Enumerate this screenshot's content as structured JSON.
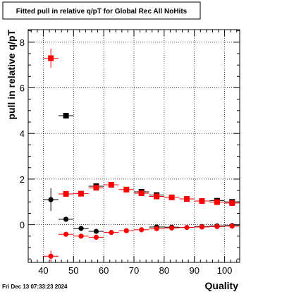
{
  "chart_data": {
    "type": "scatter",
    "title": "Fitted pull in relative q/pT for Global Rec All NoHits",
    "xlabel": "Quality",
    "ylabel": "pull in relative q/pT",
    "timestamp": "Fri Dec 13 07:33:23 2024",
    "xlim": [
      35,
      105
    ],
    "ylim": [
      -1.65,
      8.55
    ],
    "x_ticks": [
      40,
      50,
      60,
      70,
      80,
      90,
      100
    ],
    "y_ticks": [
      0,
      2,
      4,
      6,
      8
    ],
    "grid": true,
    "legend": "none",
    "series": [
      {
        "color": "#000000",
        "marker": "square",
        "points": [
          {
            "x": 47.5,
            "y": 4.78,
            "yerr": 0.0
          },
          {
            "x": 57.5,
            "y": 1.69,
            "yerr": 0.0
          },
          {
            "x": 72.5,
            "y": 1.44,
            "yerr": 0.0
          },
          {
            "x": 77.5,
            "y": 1.3,
            "yerr": 0.0
          },
          {
            "x": 97.5,
            "y": 1.05,
            "yerr": 0.0
          },
          {
            "x": 102.5,
            "y": 1.0,
            "yerr": 0.0
          }
        ]
      },
      {
        "color": "#ff0000",
        "marker": "square",
        "points": [
          {
            "x": 42.5,
            "y": 7.3,
            "yerr": 0.42
          },
          {
            "x": 47.5,
            "y": 1.35,
            "yerr": 0.0
          },
          {
            "x": 52.5,
            "y": 1.36,
            "yerr": 0.0
          },
          {
            "x": 57.5,
            "y": 1.62,
            "yerr": 0.0
          },
          {
            "x": 62.5,
            "y": 1.75,
            "yerr": 0.0
          },
          {
            "x": 67.5,
            "y": 1.54,
            "yerr": 0.0
          },
          {
            "x": 72.5,
            "y": 1.38,
            "yerr": 0.0
          },
          {
            "x": 77.5,
            "y": 1.24,
            "yerr": 0.0
          },
          {
            "x": 82.5,
            "y": 1.2,
            "yerr": 0.0
          },
          {
            "x": 87.5,
            "y": 1.13,
            "yerr": 0.0
          },
          {
            "x": 92.5,
            "y": 1.04,
            "yerr": 0.0
          },
          {
            "x": 97.5,
            "y": 0.99,
            "yerr": 0.0
          },
          {
            "x": 102.5,
            "y": 0.95,
            "yerr": 0.0
          }
        ]
      },
      {
        "color": "#000000",
        "marker": "circle",
        "points": [
          {
            "x": 42.5,
            "y": 1.1,
            "yerr": 0.5
          },
          {
            "x": 47.5,
            "y": 0.24,
            "yerr": 0.0
          },
          {
            "x": 52.5,
            "y": -0.16,
            "yerr": 0.0
          },
          {
            "x": 57.5,
            "y": -0.29,
            "yerr": 0.0
          },
          {
            "x": 77.5,
            "y": -0.1,
            "yerr": 0.0
          },
          {
            "x": 82.5,
            "y": -0.11,
            "yerr": 0.0
          },
          {
            "x": 92.5,
            "y": -0.08,
            "yerr": 0.0
          },
          {
            "x": 97.5,
            "y": -0.05,
            "yerr": 0.0
          },
          {
            "x": 102.5,
            "y": -0.04,
            "yerr": 0.0
          }
        ]
      },
      {
        "color": "#ff0000",
        "marker": "circle",
        "points": [
          {
            "x": 42.5,
            "y": -1.38,
            "yerr": 0.25
          },
          {
            "x": 47.5,
            "y": -0.42,
            "yerr": 0.0
          },
          {
            "x": 52.5,
            "y": -0.5,
            "yerr": 0.0
          },
          {
            "x": 57.5,
            "y": -0.55,
            "yerr": 0.0
          },
          {
            "x": 62.5,
            "y": -0.34,
            "yerr": 0.0
          },
          {
            "x": 67.5,
            "y": -0.26,
            "yerr": 0.0
          },
          {
            "x": 72.5,
            "y": -0.22,
            "yerr": 0.0
          },
          {
            "x": 77.5,
            "y": -0.17,
            "yerr": 0.0
          },
          {
            "x": 82.5,
            "y": -0.14,
            "yerr": 0.0
          },
          {
            "x": 87.5,
            "y": -0.12,
            "yerr": 0.0
          },
          {
            "x": 92.5,
            "y": -0.1,
            "yerr": 0.0
          },
          {
            "x": 97.5,
            "y": -0.08,
            "yerr": 0.0
          },
          {
            "x": 102.5,
            "y": -0.06,
            "yerr": 0.0
          }
        ]
      }
    ]
  }
}
